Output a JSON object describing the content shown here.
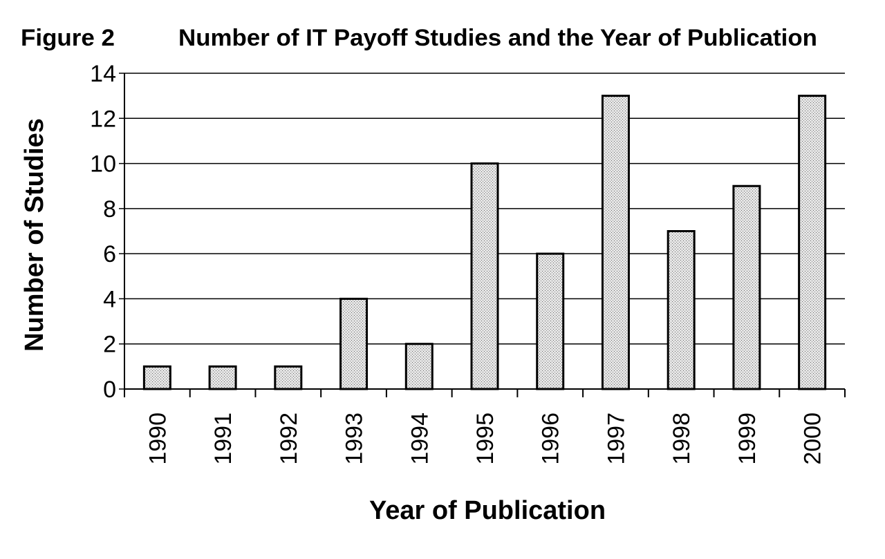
{
  "chart_data": {
    "type": "bar",
    "label": "Figure 2",
    "title": "Number of IT Payoff Studies and the Year of Publication",
    "x_label": "Year of Publication",
    "y_label": "Number of Studies",
    "categories": [
      "1990",
      "1991",
      "1992",
      "1993",
      "1994",
      "1995",
      "1996",
      "1997",
      "1998",
      "1999",
      "2000"
    ],
    "values": [
      1,
      1,
      1,
      4,
      2,
      10,
      6,
      13,
      7,
      9,
      13
    ],
    "color": "#d9d9d9",
    "ylim": [
      0,
      14
    ],
    "yticks": [
      0,
      2,
      4,
      6,
      8,
      10,
      12,
      14
    ],
    "grid": true
  }
}
